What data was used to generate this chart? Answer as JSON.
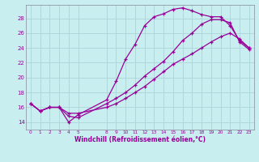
{
  "bg_color": "#c8eef0",
  "grid_color": "#b0d8dc",
  "line_color": "#990099",
  "xlabel": "Windchill (Refroidissement éolien,°C)",
  "xlim": [
    -0.5,
    23.5
  ],
  "ylim": [
    13.0,
    29.8
  ],
  "xticks": [
    0,
    1,
    2,
    3,
    4,
    5,
    8,
    9,
    10,
    11,
    12,
    13,
    14,
    15,
    16,
    17,
    18,
    19,
    20,
    21,
    22,
    23
  ],
  "yticks": [
    14,
    16,
    18,
    20,
    22,
    24,
    26,
    28
  ],
  "line1_x": [
    0,
    1,
    2,
    3,
    4,
    5,
    8,
    9,
    10,
    11,
    12,
    13,
    14,
    15,
    16,
    17,
    18,
    19,
    20,
    21,
    22,
    23
  ],
  "line1_y": [
    16.5,
    15.5,
    16.0,
    16.0,
    14.0,
    15.0,
    17.0,
    19.5,
    22.5,
    24.5,
    27.0,
    28.2,
    28.6,
    29.2,
    29.4,
    29.0,
    28.5,
    28.2,
    28.2,
    27.0,
    25.0,
    24.0
  ],
  "line2_x": [
    0,
    1,
    2,
    3,
    4,
    5,
    8,
    9,
    10,
    11,
    12,
    13,
    14,
    15,
    16,
    17,
    18,
    19,
    20,
    21,
    22,
    23
  ],
  "line2_y": [
    16.5,
    15.5,
    16.0,
    16.0,
    15.2,
    15.2,
    16.0,
    16.5,
    17.2,
    18.0,
    18.8,
    19.8,
    20.8,
    21.8,
    22.5,
    23.2,
    24.0,
    24.8,
    25.5,
    26.0,
    25.2,
    24.0
  ],
  "line3_x": [
    0,
    1,
    2,
    3,
    4,
    5,
    8,
    9,
    10,
    11,
    12,
    13,
    14,
    15,
    16,
    17,
    18,
    19,
    20,
    21,
    22,
    23
  ],
  "line3_y": [
    16.5,
    15.5,
    16.0,
    16.0,
    14.8,
    14.6,
    16.5,
    17.2,
    18.0,
    19.0,
    20.2,
    21.2,
    22.2,
    23.5,
    25.0,
    26.0,
    27.2,
    27.8,
    27.8,
    27.4,
    24.8,
    23.8
  ]
}
